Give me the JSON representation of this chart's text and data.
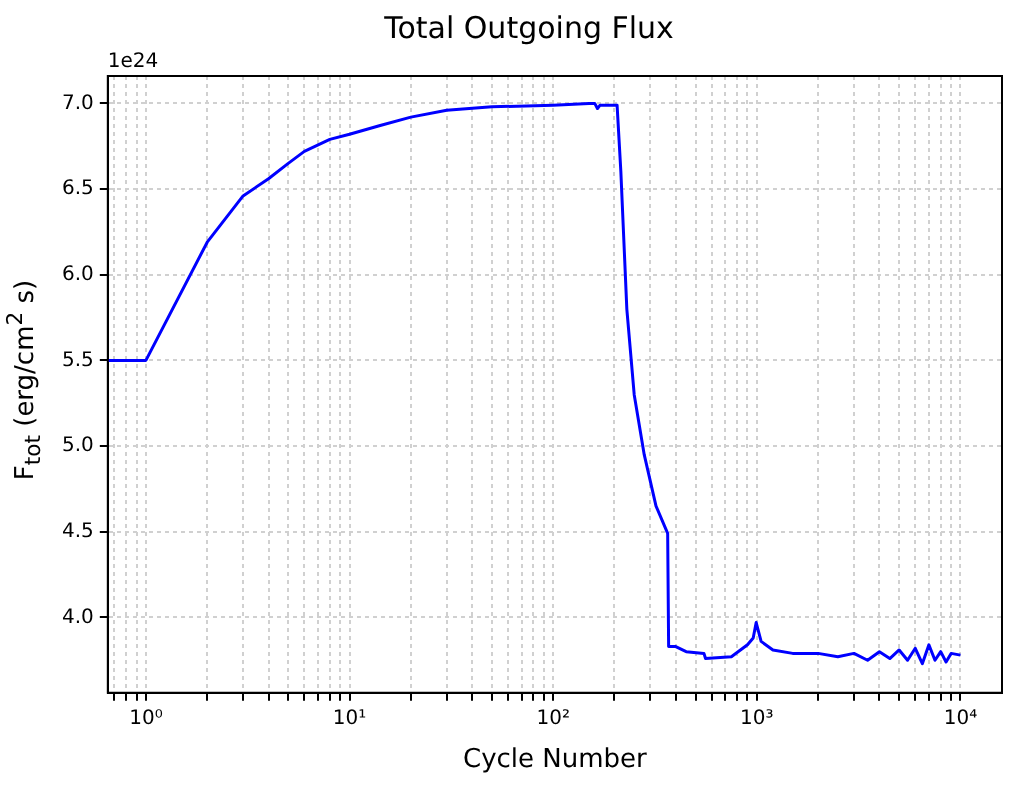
{
  "chart_data": {
    "type": "line",
    "title": "Total Outgoing Flux",
    "xlabel": "Cycle Number",
    "ylabel": "F$_{tot}$ (erg/cm$^{2}$ s)",
    "annotations": [
      "1e24"
    ],
    "log": "x",
    "grid": true,
    "marker": "none",
    "line_style": "solid",
    "xlim": [
      0.65,
      16000
    ],
    "ylim": [
      3.56,
      7.16
    ],
    "xticks": [
      {
        "value": 0.7,
        "label": null
      },
      {
        "value": 0.8,
        "label": null
      },
      {
        "value": 0.9,
        "label": null
      },
      {
        "value": 1,
        "label": "10⁰"
      },
      {
        "value": 2,
        "label": null
      },
      {
        "value": 3,
        "label": null
      },
      {
        "value": 4,
        "label": null
      },
      {
        "value": 5,
        "label": null
      },
      {
        "value": 6,
        "label": null
      },
      {
        "value": 7,
        "label": null
      },
      {
        "value": 8,
        "label": null
      },
      {
        "value": 9,
        "label": null
      },
      {
        "value": 10,
        "label": "10¹"
      },
      {
        "value": 20,
        "label": null
      },
      {
        "value": 30,
        "label": null
      },
      {
        "value": 40,
        "label": null
      },
      {
        "value": 50,
        "label": null
      },
      {
        "value": 60,
        "label": null
      },
      {
        "value": 70,
        "label": null
      },
      {
        "value": 80,
        "label": null
      },
      {
        "value": 90,
        "label": null
      },
      {
        "value": 100,
        "label": "10²"
      },
      {
        "value": 200,
        "label": null
      },
      {
        "value": 300,
        "label": null
      },
      {
        "value": 400,
        "label": null
      },
      {
        "value": 500,
        "label": null
      },
      {
        "value": 600,
        "label": null
      },
      {
        "value": 700,
        "label": null
      },
      {
        "value": 800,
        "label": null
      },
      {
        "value": 900,
        "label": null
      },
      {
        "value": 1000,
        "label": "10³"
      },
      {
        "value": 2000,
        "label": null
      },
      {
        "value": 3000,
        "label": null
      },
      {
        "value": 4000,
        "label": null
      },
      {
        "value": 5000,
        "label": null
      },
      {
        "value": 6000,
        "label": null
      },
      {
        "value": 7000,
        "label": null
      },
      {
        "value": 8000,
        "label": null
      },
      {
        "value": 9000,
        "label": null
      },
      {
        "value": 10000,
        "label": "10⁴"
      }
    ],
    "yticks": [
      {
        "value": 4,
        "label": "4.0"
      },
      {
        "value": 4.5,
        "label": "4.5"
      },
      {
        "value": 5,
        "label": "5.0"
      },
      {
        "value": 5.5,
        "label": "5.5"
      },
      {
        "value": 6,
        "label": "6.0"
      },
      {
        "value": 6.5,
        "label": "6.5"
      },
      {
        "value": 7,
        "label": "7.0"
      }
    ],
    "series": [
      {
        "color": "#0000ff",
        "x": [
          0.65,
          1,
          2,
          3,
          4,
          5,
          6,
          8,
          10,
          14,
          20,
          30,
          50,
          100,
          150,
          160,
          165,
          170,
          206,
          215,
          230,
          250,
          280,
          320,
          365,
          369,
          400,
          450,
          550,
          560,
          750,
          900,
          960,
          993,
          1050,
          1200,
          1500,
          2000,
          2500,
          3000,
          3500,
          4000,
          4500,
          5000,
          5500,
          6000,
          6500,
          7000,
          7500,
          8000,
          8500,
          9000,
          10000
        ],
        "values": [
          5.5,
          5.5,
          6.19,
          6.46,
          6.56,
          6.65,
          6.72,
          6.79,
          6.82,
          6.87,
          6.92,
          6.96,
          6.98,
          6.99,
          7.0,
          7.0,
          6.97,
          6.99,
          6.99,
          6.6,
          5.8,
          5.3,
          4.95,
          4.65,
          4.49,
          3.83,
          3.83,
          3.8,
          3.79,
          3.76,
          3.77,
          3.84,
          3.88,
          3.97,
          3.86,
          3.81,
          3.79,
          3.79,
          3.77,
          3.79,
          3.75,
          3.8,
          3.76,
          3.81,
          3.75,
          3.82,
          3.73,
          3.84,
          3.75,
          3.8,
          3.74,
          3.79,
          3.78
        ]
      }
    ]
  }
}
